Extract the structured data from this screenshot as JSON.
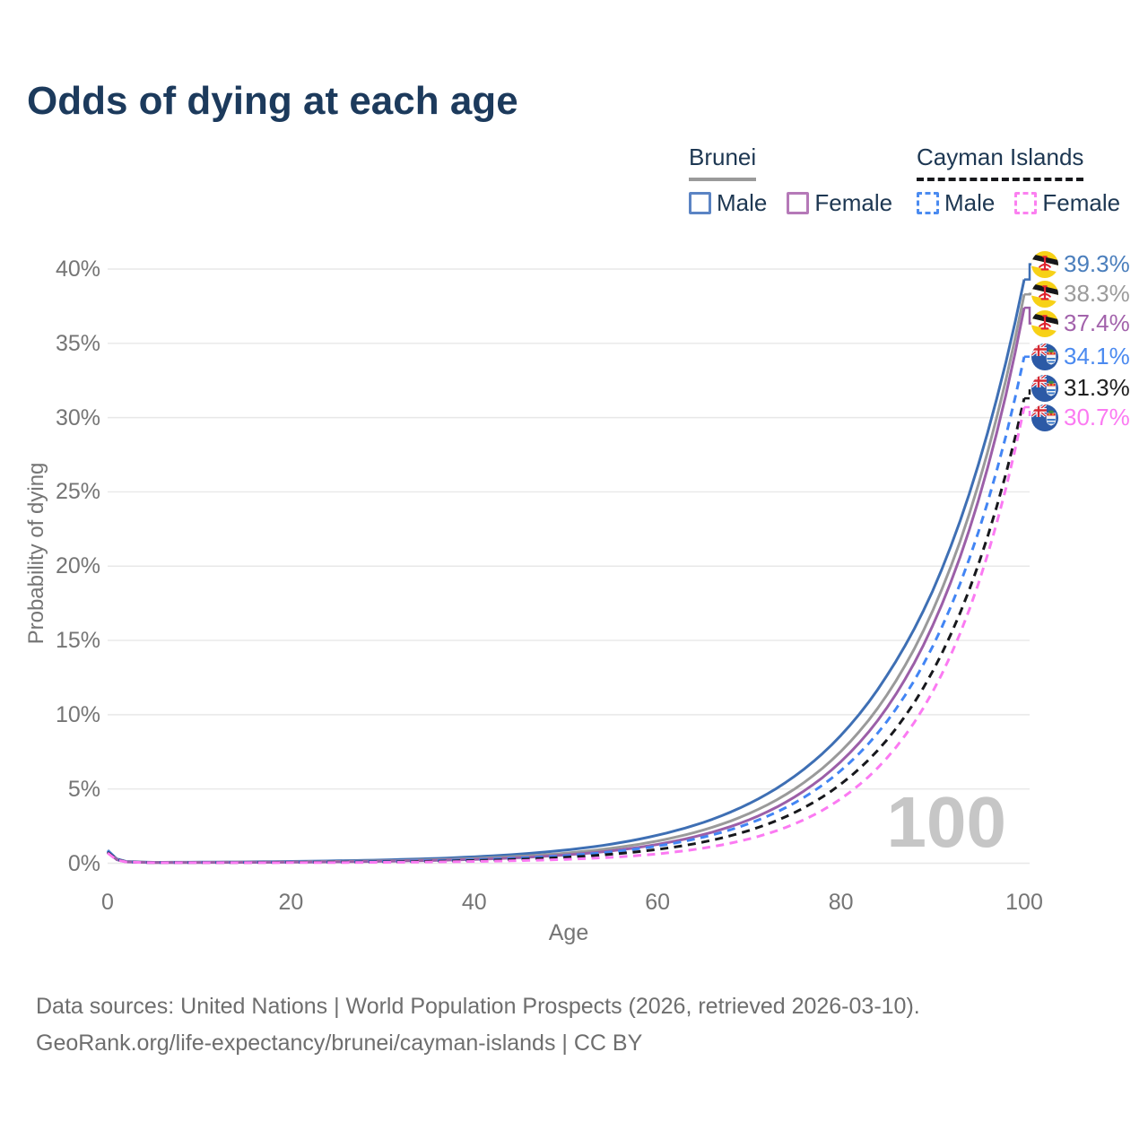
{
  "title": "Odds of dying at each age",
  "legend": {
    "groups": [
      {
        "name": "Brunei",
        "line_style": "solid",
        "line_color": "#9a9a9a",
        "items": [
          {
            "label": "Male",
            "swatch_color": "#5b84c4",
            "style": "solid"
          },
          {
            "label": "Female",
            "swatch_color": "#b579b8",
            "style": "solid"
          }
        ]
      },
      {
        "name": "Cayman Islands",
        "line_style": "dashed",
        "line_color": "#17181c",
        "items": [
          {
            "label": "Male",
            "swatch_color": "#4b8bf0",
            "style": "dashed"
          },
          {
            "label": "Female",
            "swatch_color": "#fb80f0",
            "style": "dashed"
          }
        ]
      }
    ]
  },
  "chart_data": {
    "type": "line",
    "title": "Odds of dying at each age",
    "xlabel": "Age",
    "ylabel": "Probability of dying",
    "xlim": [
      0,
      100
    ],
    "ylim": [
      0,
      40
    ],
    "grid": "horizontal",
    "legend_position": "top-right",
    "watermark": "100",
    "x_ticks": [
      {
        "value": 0,
        "label": "0"
      },
      {
        "value": 20,
        "label": "20"
      },
      {
        "value": 40,
        "label": "40"
      },
      {
        "value": 60,
        "label": "60"
      },
      {
        "value": 80,
        "label": "80"
      },
      {
        "value": 100,
        "label": "100"
      }
    ],
    "y_ticks": [
      {
        "value": 0,
        "label": "0%"
      },
      {
        "value": 5,
        "label": "5%"
      },
      {
        "value": 10,
        "label": "10%"
      },
      {
        "value": 15,
        "label": "15%"
      },
      {
        "value": 20,
        "label": "20%"
      },
      {
        "value": 25,
        "label": "25%"
      },
      {
        "value": 30,
        "label": "30%"
      },
      {
        "value": 35,
        "label": "35%"
      },
      {
        "value": 40,
        "label": "40%"
      }
    ],
    "ages": [
      0,
      1,
      2,
      5,
      10,
      20,
      30,
      40,
      50,
      55,
      60,
      65,
      70,
      75,
      80,
      85,
      90,
      95,
      100
    ],
    "series": [
      {
        "name": "Brunei Male",
        "country": "Brunei",
        "sex": "Male",
        "flag": "brunei",
        "style": "solid",
        "color": "#3e6fb4",
        "label_color": "#4a7ebc",
        "end_label": "39.3%",
        "end_value": 39.3,
        "values": [
          0.87,
          0.29,
          0.12,
          0.06,
          0.07,
          0.12,
          0.22,
          0.43,
          0.89,
          1.29,
          1.89,
          2.75,
          4.02,
          5.88,
          8.61,
          12.61,
          18.32,
          26.84,
          39.3
        ]
      },
      {
        "name": "Brunei All",
        "country": "Brunei",
        "sex": "All",
        "flag": "brunei",
        "style": "solid",
        "color": "#9a9a9a",
        "label_color": "#9b9b9b",
        "end_label": "38.3%",
        "end_value": 38.3,
        "values": [
          0.81,
          0.26,
          0.11,
          0.05,
          0.06,
          0.09,
          0.16,
          0.32,
          0.68,
          1.01,
          1.5,
          2.24,
          3.35,
          5.02,
          7.53,
          11.31,
          16.98,
          25.5,
          38.3
        ]
      },
      {
        "name": "Brunei Female",
        "country": "Brunei",
        "sex": "Female",
        "flag": "brunei",
        "style": "solid",
        "color": "#9c5fa8",
        "label_color": "#a262ab",
        "end_label": "37.4%",
        "end_value": 37.4,
        "values": [
          0.76,
          0.24,
          0.09,
          0.05,
          0.05,
          0.07,
          0.13,
          0.26,
          0.56,
          0.84,
          1.27,
          1.93,
          2.93,
          4.48,
          6.84,
          10.45,
          15.98,
          24.43,
          37.4
        ]
      },
      {
        "name": "Cayman Islands Male",
        "country": "Cayman Islands",
        "sex": "Male",
        "flag": "cayman",
        "style": "dashed",
        "color": "#4285f4",
        "label_color": "#4b8af0",
        "end_label": "34.1%",
        "end_value": 34.1,
        "values": [
          0.82,
          0.26,
          0.1,
          0.04,
          0.05,
          0.07,
          0.12,
          0.24,
          0.51,
          0.77,
          1.16,
          1.76,
          2.68,
          4.08,
          6.24,
          9.53,
          14.58,
          22.3,
          34.1
        ]
      },
      {
        "name": "Cayman Islands All",
        "country": "Cayman Islands",
        "sex": "All",
        "flag": "cayman",
        "style": "dashed",
        "color": "#17181c",
        "label_color": "#1f1f1f",
        "end_label": "31.3%",
        "end_value": 31.3,
        "values": [
          0.75,
          0.24,
          0.1,
          0.04,
          0.04,
          0.06,
          0.09,
          0.18,
          0.4,
          0.61,
          0.93,
          1.43,
          2.21,
          3.43,
          5.33,
          8.29,
          12.91,
          20.11,
          31.3
        ]
      },
      {
        "name": "Cayman Islands Female",
        "country": "Cayman Islands",
        "sex": "Female",
        "flag": "cayman",
        "style": "dashed",
        "color": "#fb7af2",
        "label_color": "#fb7af2",
        "end_label": "30.7%",
        "end_value": 30.7,
        "values": [
          0.69,
          0.22,
          0.09,
          0.035,
          0.034,
          0.04,
          0.06,
          0.12,
          0.26,
          0.4,
          0.63,
          1.02,
          1.64,
          2.66,
          4.34,
          7.07,
          11.53,
          18.82,
          30.7
        ]
      }
    ]
  },
  "footer": {
    "line1": "Data sources: United Nations | World Population Prospects (2026, retrieved 2026-03-10).",
    "line2": "GeoRank.org/life-expectancy/brunei/cayman-islands | CC BY"
  }
}
